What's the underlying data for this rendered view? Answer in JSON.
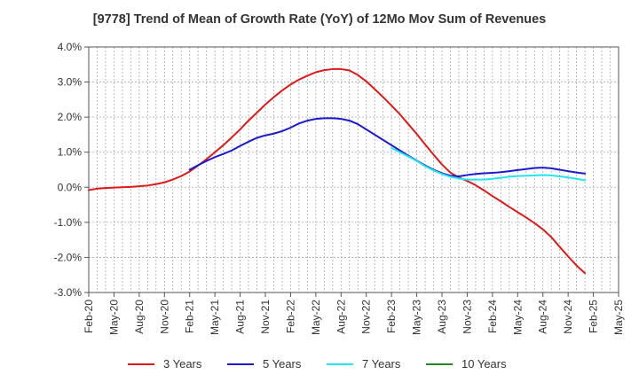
{
  "chart_data": {
    "type": "line",
    "title": "[9778]  Trend of Mean of Growth Rate (YoY) of 12Mo Mov Sum of Revenues",
    "xlabel": "",
    "ylabel": "",
    "x_ticks": [
      "Feb-20",
      "May-20",
      "Aug-20",
      "Nov-20",
      "Feb-21",
      "May-21",
      "Aug-21",
      "Nov-21",
      "Feb-22",
      "May-22",
      "Aug-22",
      "Nov-22",
      "Feb-23",
      "May-23",
      "Aug-23",
      "Nov-23",
      "Feb-24",
      "May-24",
      "Aug-24",
      "Nov-24",
      "Feb-25",
      "May-25"
    ],
    "y_ticks": [
      "4.0%",
      "3.0%",
      "2.0%",
      "1.0%",
      "0.0%",
      "-1.0%",
      "-2.0%",
      "-3.0%"
    ],
    "ylim": [
      -3.0,
      4.0
    ],
    "grid": true,
    "legend_position": "bottom",
    "series": [
      {
        "name": "3 Years",
        "color": "#dd1a1a",
        "points": [
          [
            0,
            -0.08
          ],
          [
            1,
            -0.04
          ],
          [
            2,
            -0.02
          ],
          [
            3,
            -0.01
          ],
          [
            4,
            0.0
          ],
          [
            5,
            0.01
          ],
          [
            6,
            0.03
          ],
          [
            7,
            0.05
          ],
          [
            8,
            0.09
          ],
          [
            9,
            0.14
          ],
          [
            10,
            0.22
          ],
          [
            11,
            0.32
          ],
          [
            12,
            0.45
          ],
          [
            13,
            0.62
          ],
          [
            14,
            0.8
          ],
          [
            15,
            1.0
          ],
          [
            16,
            1.2
          ],
          [
            17,
            1.42
          ],
          [
            18,
            1.65
          ],
          [
            19,
            1.9
          ],
          [
            20,
            2.13
          ],
          [
            21,
            2.36
          ],
          [
            22,
            2.57
          ],
          [
            23,
            2.76
          ],
          [
            24,
            2.93
          ],
          [
            25,
            3.07
          ],
          [
            26,
            3.18
          ],
          [
            27,
            3.28
          ],
          [
            28,
            3.34
          ],
          [
            29,
            3.37
          ],
          [
            30,
            3.37
          ],
          [
            31,
            3.33
          ],
          [
            32,
            3.2
          ],
          [
            33,
            3.02
          ],
          [
            34,
            2.8
          ],
          [
            35,
            2.57
          ],
          [
            36,
            2.33
          ],
          [
            37,
            2.08
          ],
          [
            38,
            1.8
          ],
          [
            39,
            1.52
          ],
          [
            40,
            1.22
          ],
          [
            41,
            0.93
          ],
          [
            42,
            0.65
          ],
          [
            43,
            0.42
          ],
          [
            44,
            0.28
          ],
          [
            45,
            0.18
          ],
          [
            46,
            0.06
          ],
          [
            47,
            -0.09
          ],
          [
            48,
            -0.25
          ],
          [
            49,
            -0.4
          ],
          [
            50,
            -0.56
          ],
          [
            51,
            -0.71
          ],
          [
            52,
            -0.86
          ],
          [
            53,
            -1.02
          ],
          [
            54,
            -1.2
          ],
          [
            55,
            -1.42
          ],
          [
            56,
            -1.7
          ],
          [
            57,
            -1.97
          ],
          [
            58,
            -2.23
          ],
          [
            59,
            -2.45
          ]
        ]
      },
      {
        "name": "5 Years",
        "color": "#1a1acc",
        "points": [
          [
            12,
            0.5
          ],
          [
            13,
            0.63
          ],
          [
            14,
            0.75
          ],
          [
            15,
            0.86
          ],
          [
            16,
            0.95
          ],
          [
            17,
            1.05
          ],
          [
            18,
            1.18
          ],
          [
            19,
            1.3
          ],
          [
            20,
            1.41
          ],
          [
            21,
            1.48
          ],
          [
            22,
            1.53
          ],
          [
            23,
            1.6
          ],
          [
            24,
            1.7
          ],
          [
            25,
            1.82
          ],
          [
            26,
            1.9
          ],
          [
            27,
            1.95
          ],
          [
            28,
            1.97
          ],
          [
            29,
            1.97
          ],
          [
            30,
            1.95
          ],
          [
            31,
            1.9
          ],
          [
            32,
            1.8
          ],
          [
            33,
            1.65
          ],
          [
            34,
            1.5
          ],
          [
            35,
            1.35
          ],
          [
            36,
            1.2
          ],
          [
            37,
            1.05
          ],
          [
            38,
            0.9
          ],
          [
            39,
            0.76
          ],
          [
            40,
            0.62
          ],
          [
            41,
            0.5
          ],
          [
            42,
            0.4
          ],
          [
            43,
            0.33
          ],
          [
            44,
            0.31
          ],
          [
            45,
            0.35
          ],
          [
            46,
            0.38
          ],
          [
            47,
            0.4
          ],
          [
            48,
            0.41
          ],
          [
            49,
            0.43
          ],
          [
            50,
            0.46
          ],
          [
            51,
            0.49
          ],
          [
            52,
            0.52
          ],
          [
            53,
            0.55
          ],
          [
            54,
            0.56
          ],
          [
            55,
            0.54
          ],
          [
            56,
            0.5
          ],
          [
            57,
            0.46
          ],
          [
            58,
            0.42
          ],
          [
            59,
            0.39
          ]
        ]
      },
      {
        "name": "7 Years",
        "color": "#22e5f0",
        "points": [
          [
            36,
            1.12
          ],
          [
            37,
            1.0
          ],
          [
            38,
            0.88
          ],
          [
            39,
            0.75
          ],
          [
            40,
            0.6
          ],
          [
            41,
            0.48
          ],
          [
            42,
            0.38
          ],
          [
            43,
            0.3
          ],
          [
            44,
            0.25
          ],
          [
            45,
            0.22
          ],
          [
            46,
            0.22
          ],
          [
            47,
            0.22
          ],
          [
            48,
            0.24
          ],
          [
            49,
            0.27
          ],
          [
            50,
            0.3
          ],
          [
            51,
            0.32
          ],
          [
            52,
            0.33
          ],
          [
            53,
            0.34
          ],
          [
            54,
            0.35
          ],
          [
            55,
            0.34
          ],
          [
            56,
            0.31
          ],
          [
            57,
            0.28
          ],
          [
            58,
            0.24
          ],
          [
            59,
            0.2
          ]
        ]
      },
      {
        "name": "10 Years",
        "color": "#228822",
        "points": []
      }
    ]
  }
}
